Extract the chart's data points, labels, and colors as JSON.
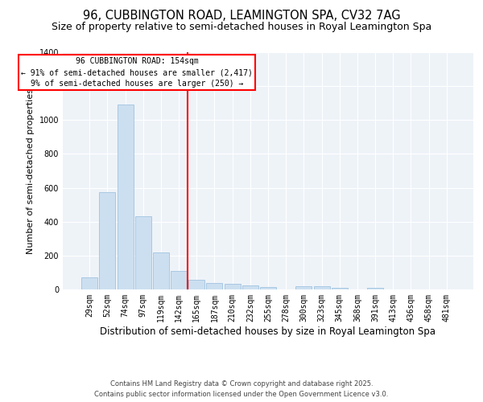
{
  "title1": "96, CUBBINGTON ROAD, LEAMINGTON SPA, CV32 7AG",
  "title2": "Size of property relative to semi-detached houses in Royal Leamington Spa",
  "xlabel": "Distribution of semi-detached houses by size in Royal Leamington Spa",
  "ylabel": "Number of semi-detached properties",
  "categories": [
    "29sqm",
    "52sqm",
    "74sqm",
    "97sqm",
    "119sqm",
    "142sqm",
    "165sqm",
    "187sqm",
    "210sqm",
    "232sqm",
    "255sqm",
    "278sqm",
    "300sqm",
    "323sqm",
    "345sqm",
    "368sqm",
    "391sqm",
    "413sqm",
    "436sqm",
    "458sqm",
    "481sqm"
  ],
  "values": [
    70,
    575,
    1090,
    430,
    220,
    110,
    55,
    40,
    35,
    25,
    15,
    0,
    20,
    18,
    10,
    0,
    10,
    0,
    0,
    0,
    0
  ],
  "bar_color": "#ccdff0",
  "bar_edge_color": "#a0c4e0",
  "vline_x": 5.5,
  "vline_color": "red",
  "annotation_title": "96 CUBBINGTON ROAD: 154sqm",
  "annotation_line1": "← 91% of semi-detached houses are smaller (2,417)",
  "annotation_line2": "9% of semi-detached houses are larger (250) →",
  "annotation_box_color": "red",
  "ylim": [
    0,
    1400
  ],
  "yticks": [
    0,
    200,
    400,
    600,
    800,
    1000,
    1200,
    1400
  ],
  "background_color": "#eef3f8",
  "footer1": "Contains HM Land Registry data © Crown copyright and database right 2025.",
  "footer2": "Contains public sector information licensed under the Open Government Licence v3.0.",
  "title1_fontsize": 10.5,
  "title2_fontsize": 9,
  "xlabel_fontsize": 8.5,
  "ylabel_fontsize": 8,
  "tick_fontsize": 7,
  "ann_fontsize": 7,
  "footer_fontsize": 6
}
